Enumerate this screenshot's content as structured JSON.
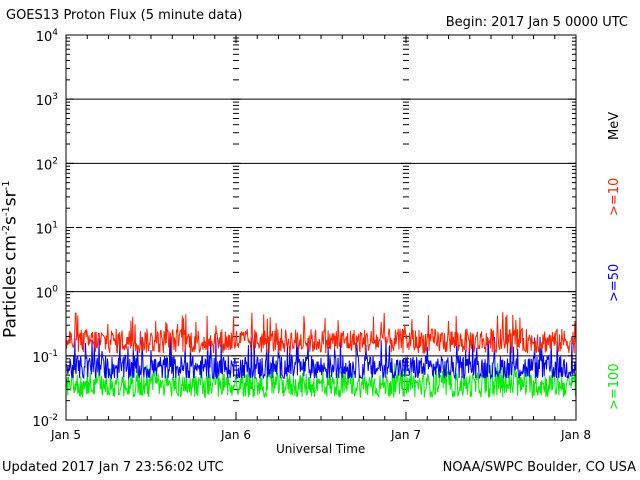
{
  "header": {
    "title": "GOES13 Proton Flux (5 minute data)",
    "begin": "Begin: 2017 Jan 5 0000 UTC"
  },
  "footer": {
    "updated": "Updated 2017 Jan  7 23:56:02 UTC",
    "credit": "NOAA/SWPC Boulder, CO USA"
  },
  "legend": {
    "ge10": ">=10",
    "ge50": ">=50",
    "ge100": ">=100",
    "unit": "MeV"
  },
  "chart_data": {
    "type": "line",
    "title": "GOES13 Proton Flux (5 minute data)",
    "xlabel": "Universal Time",
    "ylabel": "Particles cm-2s-1sr-1",
    "x_ticks": [
      "Jan 5",
      "Jan 6",
      "Jan 7",
      "Jan 8"
    ],
    "xlim_days": [
      0,
      3
    ],
    "yscale": "log",
    "ylim": [
      0.01,
      10000
    ],
    "y_ticks": [
      {
        "base": "10",
        "exp": "-2"
      },
      {
        "base": "10",
        "exp": "-1"
      },
      {
        "base": "10",
        "exp": "0"
      },
      {
        "base": "10",
        "exp": "1"
      },
      {
        "base": "10",
        "exp": "2"
      },
      {
        "base": "10",
        "exp": "3"
      },
      {
        "base": "10",
        "exp": "4"
      }
    ],
    "horizontal_lines": [
      {
        "y": 0.1,
        "style": "solid",
        "color": "#000000"
      },
      {
        "y": 1,
        "style": "solid",
        "color": "#000000"
      },
      {
        "y": 10,
        "style": "dashed",
        "color": "#000000"
      },
      {
        "y": 100,
        "style": "solid",
        "color": "#000000"
      },
      {
        "y": 1000,
        "style": "solid",
        "color": "#000000"
      }
    ],
    "series": [
      {
        "name": ">=10 MeV",
        "color": "#ff2200",
        "typical": 0.17,
        "min": 0.11,
        "max": 0.48
      },
      {
        "name": ">=50 MeV",
        "color": "#0000ff",
        "typical": 0.065,
        "min": 0.045,
        "max": 0.2
      },
      {
        "name": ">=100 MeV",
        "color": "#00ee00",
        "typical": 0.035,
        "min": 0.022,
        "max": 0.08
      }
    ]
  }
}
